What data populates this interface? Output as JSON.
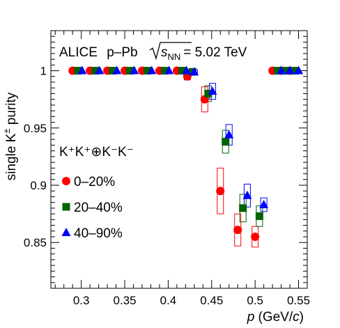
{
  "chart_data": {
    "type": "scatter",
    "annotation": {
      "experiment": "ALICE",
      "system": "p–Pb",
      "energy_prefix": "s",
      "energy_sub": "NN",
      "energy_value": "= 5.02 TeV"
    },
    "xlabel": {
      "main": "p",
      "units_open": " (GeV/",
      "units_c": "c",
      "units_close": ")"
    },
    "ylabel": {
      "prefix": "single K",
      "sup": "±",
      "suffix": " purity"
    },
    "xlim": [
      0.265,
      0.56
    ],
    "ylim": [
      0.81,
      1.035
    ],
    "x_ticks": [
      0.3,
      0.35,
      0.4,
      0.45,
      0.5,
      0.55
    ],
    "x_tick_labels": [
      "0.3",
      "0.35",
      "0.4",
      "0.45",
      "0.5",
      "0.55"
    ],
    "y_ticks": [
      0.85,
      0.9,
      0.95,
      1
    ],
    "y_tick_labels": [
      "0.85",
      "0.9",
      "0.95",
      "1"
    ],
    "legend": {
      "header": "K⁺K⁺⊕K⁻K⁻",
      "placement": "left"
    },
    "series": [
      {
        "name": "0–20%",
        "marker": "circle",
        "color": "#ff0000",
        "box_color": "#ff0000",
        "points": [
          {
            "x": 0.29,
            "y": 1
          },
          {
            "x": 0.31,
            "y": 1
          },
          {
            "x": 0.33,
            "y": 1
          },
          {
            "x": 0.35,
            "y": 1
          },
          {
            "x": 0.37,
            "y": 1
          },
          {
            "x": 0.39,
            "y": 1
          },
          {
            "x": 0.41,
            "y": 1
          },
          {
            "x": 0.422,
            "y": 0.995,
            "syst": 0.003
          },
          {
            "x": 0.442,
            "y": 0.975,
            "syst": 0.011
          },
          {
            "x": 0.46,
            "y": 0.895,
            "syst": 0.02
          },
          {
            "x": 0.48,
            "y": 0.861,
            "syst": 0.014
          },
          {
            "x": 0.5,
            "y": 0.855,
            "syst": 0.009
          },
          {
            "x": 0.52,
            "y": 1
          },
          {
            "x": 0.53,
            "y": 1
          },
          {
            "x": 0.54,
            "y": 1
          }
        ]
      },
      {
        "name": "20–40%",
        "marker": "square",
        "color": "#006400",
        "box_color": "#006400",
        "points": [
          {
            "x": 0.296,
            "y": 1
          },
          {
            "x": 0.316,
            "y": 1
          },
          {
            "x": 0.336,
            "y": 1
          },
          {
            "x": 0.356,
            "y": 1
          },
          {
            "x": 0.376,
            "y": 1
          },
          {
            "x": 0.396,
            "y": 1
          },
          {
            "x": 0.416,
            "y": 1
          },
          {
            "x": 0.428,
            "y": 0.999,
            "syst": 0.002
          },
          {
            "x": 0.446,
            "y": 0.98,
            "syst": 0.007
          },
          {
            "x": 0.466,
            "y": 0.938,
            "syst": 0.01
          },
          {
            "x": 0.486,
            "y": 0.88,
            "syst": 0.012
          },
          {
            "x": 0.505,
            "y": 0.873,
            "syst": 0.009
          },
          {
            "x": 0.526,
            "y": 1
          },
          {
            "x": 0.536,
            "y": 1
          },
          {
            "x": 0.546,
            "y": 1
          }
        ]
      },
      {
        "name": "40–90%",
        "marker": "triangle",
        "color": "#0000ff",
        "box_color": "#0000ff",
        "points": [
          {
            "x": 0.301,
            "y": 1
          },
          {
            "x": 0.321,
            "y": 1
          },
          {
            "x": 0.341,
            "y": 1
          },
          {
            "x": 0.361,
            "y": 1
          },
          {
            "x": 0.381,
            "y": 1
          },
          {
            "x": 0.401,
            "y": 1
          },
          {
            "x": 0.421,
            "y": 1
          },
          {
            "x": 0.43,
            "y": 0.999,
            "syst": 0.002
          },
          {
            "x": 0.451,
            "y": 0.982,
            "syst": 0.007
          },
          {
            "x": 0.47,
            "y": 0.944,
            "syst": 0.009
          },
          {
            "x": 0.491,
            "y": 0.891,
            "syst": 0.01
          },
          {
            "x": 0.51,
            "y": 0.883,
            "syst": 0.006
          },
          {
            "x": 0.53,
            "y": 1
          },
          {
            "x": 0.54,
            "y": 1
          },
          {
            "x": 0.55,
            "y": 1
          }
        ]
      }
    ]
  }
}
